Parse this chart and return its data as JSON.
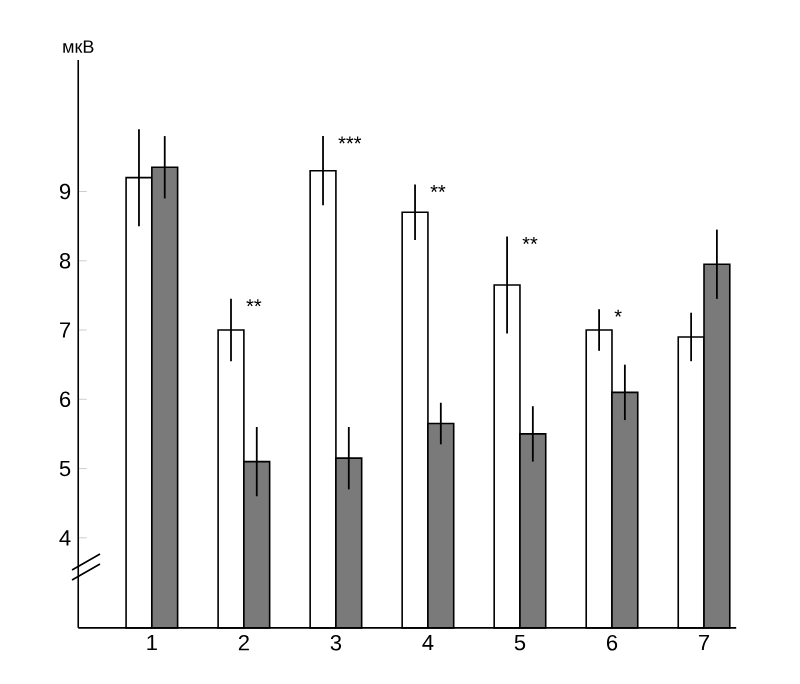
{
  "chart_data": {
    "type": "bar",
    "ylabel": "мкВ",
    "categories": [
      "1",
      "2",
      "3",
      "4",
      "5",
      "6",
      "7"
    ],
    "series": [
      {
        "color": "#ffffff",
        "values": [
          9.2,
          7.0,
          9.3,
          8.7,
          7.65,
          7.0,
          6.9
        ],
        "errors": [
          0.7,
          0.45,
          0.5,
          0.4,
          0.7,
          0.3,
          0.35
        ]
      },
      {
        "color": "#7a7a7a",
        "values": [
          9.35,
          5.1,
          5.15,
          5.65,
          5.5,
          6.1,
          7.95
        ],
        "errors": [
          0.45,
          0.5,
          0.45,
          0.3,
          0.4,
          0.4,
          0.5
        ]
      }
    ],
    "ylim": [
      2.7,
      10.9
    ],
    "yticks": [
      4,
      5,
      6,
      7,
      8,
      9
    ],
    "annotations": [
      "**",
      "***",
      "**",
      "**",
      "*"
    ]
  }
}
